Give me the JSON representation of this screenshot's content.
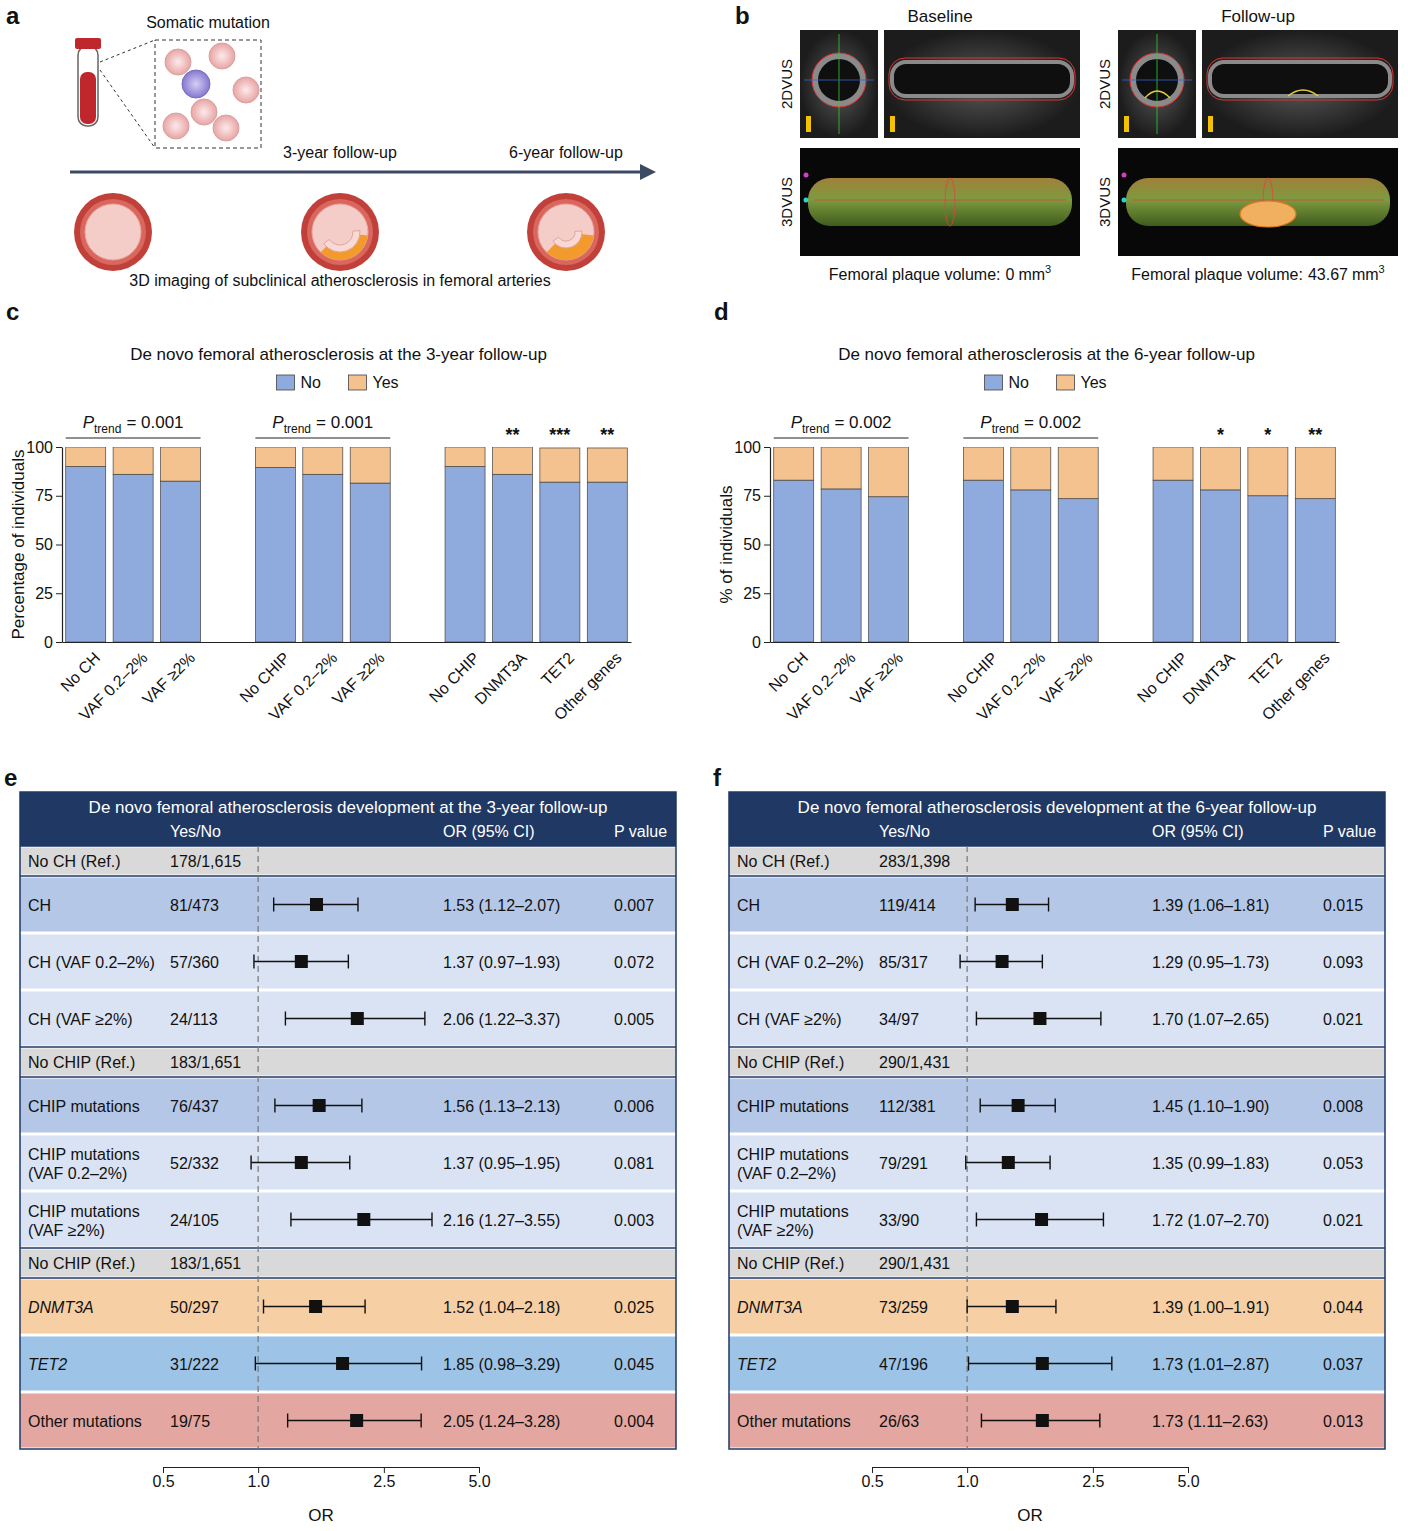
{
  "panel_a": {
    "label": "a",
    "cell_label": "Somatic mutation",
    "timepoints": [
      "3-year follow-up",
      "6-year follow-up"
    ],
    "caption": "3D imaging of subclinical atherosclerosis in femoral arteries"
  },
  "panel_b": {
    "label": "b",
    "rows": [
      "2DVUS",
      "3DVUS"
    ],
    "columns": [
      {
        "title": "Baseline",
        "volume_label": "Femoral plaque volume:",
        "volume": 0,
        "unit": "mm",
        "unit_exp": "3"
      },
      {
        "title": "Follow-up",
        "volume_label": "Femoral plaque volume:",
        "volume": 43.67,
        "unit": "mm",
        "unit_exp": "3"
      }
    ]
  },
  "chart_data": [
    {
      "panel": "c",
      "type": "bar",
      "stacked": true,
      "title": "De novo femoral atherosclerosis at the 3-year follow-up",
      "y_label": "Percentage of individuals",
      "categories": [
        "No CH",
        "VAF 0.2–2%",
        "VAF ≥2%",
        "No CHIP",
        "VAF 0.2–2%",
        "VAF ≥2%",
        "No CHIP",
        "DNMT3A",
        "TET2",
        "Other genes"
      ],
      "series": [
        {
          "name": "No",
          "color": "#8faadc",
          "values": [
            90,
            86,
            82.5,
            89.5,
            86,
            81.5,
            90,
            86,
            82,
            82
          ]
        },
        {
          "name": "Yes",
          "color": "#f4c28e",
          "values": [
            10,
            14,
            17.5,
            10.5,
            14,
            18.5,
            10,
            14,
            17.5,
            17.5
          ]
        }
      ],
      "ylim": [
        0,
        100
      ],
      "yticks": [
        0,
        25,
        50,
        75,
        100
      ],
      "legend": "top",
      "trend_tests": [
        {
          "symbol": "P",
          "subscript": "trend",
          "text": "= 0.001",
          "from": 0,
          "to": 2
        },
        {
          "symbol": "P",
          "subscript": "trend",
          "text": "= 0.001",
          "from": 3,
          "to": 5
        }
      ],
      "significance": [
        null,
        null,
        null,
        null,
        null,
        null,
        null,
        "**",
        "***",
        "**"
      ]
    },
    {
      "panel": "d",
      "type": "bar",
      "stacked": true,
      "title": "De novo femoral atherosclerosis at the 6-year follow-up",
      "y_label": "% of individuals",
      "categories": [
        "No CH",
        "VAF 0.2–2%",
        "VAF ≥2%",
        "No CHIP",
        "VAF 0.2–2%",
        "VAF ≥2%",
        "No CHIP",
        "DNMT3A",
        "TET2",
        "Other genes"
      ],
      "series": [
        {
          "name": "No",
          "color": "#8faadc",
          "values": [
            83,
            78.5,
            74.5,
            83,
            78,
            73.5,
            83,
            78,
            75,
            73.5
          ]
        },
        {
          "name": "Yes",
          "color": "#f4c28e",
          "values": [
            17,
            21.5,
            25.5,
            17,
            22,
            26.5,
            17,
            22,
            25,
            26.5
          ]
        }
      ],
      "ylim": [
        0,
        100
      ],
      "yticks": [
        0,
        25,
        50,
        75,
        100
      ],
      "legend": "top",
      "trend_tests": [
        {
          "symbol": "P",
          "subscript": "trend",
          "text": "= 0.002",
          "from": 0,
          "to": 2
        },
        {
          "symbol": "P",
          "subscript": "trend",
          "text": "= 0.002",
          "from": 3,
          "to": 5
        }
      ],
      "significance": [
        null,
        null,
        null,
        null,
        null,
        null,
        null,
        "*",
        "*",
        "**"
      ]
    },
    {
      "panel": "e",
      "type": "forest",
      "title": "De novo femoral atherosclerosis development at the 3-year follow-up",
      "columns": [
        "Yes/No",
        "OR (95% CI)",
        "P value"
      ],
      "x_label": "OR",
      "log": "x",
      "xlim": [
        0.5,
        5
      ],
      "xticks": [
        0.5,
        {
          "value": 1,
          "label": "1.0"
        },
        2.5,
        {
          "value": 5,
          "label": "5.0"
        }
      ],
      "reference_line": 1,
      "rows": [
        {
          "label": "No CH (Ref.)",
          "counts": "178/1,615",
          "color": "#d9d9d9"
        },
        {
          "label": "CH",
          "counts": "81/473",
          "or": 1.53,
          "ci": [
            1.12,
            2.07
          ],
          "or_label": "1.53 (1.12–2.07)",
          "p": 0.007,
          "color": "#b4c7e7"
        },
        {
          "label": "CH (VAF 0.2–2%)",
          "counts": "57/360",
          "or": 1.37,
          "ci": [
            0.97,
            1.93
          ],
          "or_label": "1.37 (0.97–1.93)",
          "p": 0.072,
          "color": "#dae3f3"
        },
        {
          "label": "CH (VAF ≥2%)",
          "counts": "24/113",
          "or": 2.06,
          "ci": [
            1.22,
            3.37
          ],
          "or_label": "2.06 (1.22–3.37)",
          "p": 0.005,
          "color": "#dae3f3"
        },
        {
          "label": "No CHIP (Ref.)",
          "counts": "183/1,651",
          "color": "#d9d9d9"
        },
        {
          "label": "CHIP mutations",
          "counts": "76/437",
          "or": 1.56,
          "ci": [
            1.13,
            2.13
          ],
          "or_label": "1.56 (1.13–2.13)",
          "p": 0.006,
          "color": "#b4c7e7"
        },
        {
          "label": "CHIP mutations (VAF 0.2–2%)",
          "counts": "52/332",
          "or": 1.37,
          "ci": [
            0.95,
            1.95
          ],
          "or_label": "1.37 (0.95–1.95)",
          "p": 0.081,
          "color": "#dae3f3"
        },
        {
          "label": "CHIP mutations (VAF ≥2%)",
          "counts": "24/105",
          "or": 2.16,
          "ci": [
            1.27,
            3.55
          ],
          "or_label": "2.16 (1.27–3.55)",
          "p": 0.003,
          "color": "#dae3f3"
        },
        {
          "label": "No CHIP (Ref.)",
          "counts": "183/1,651",
          "color": "#d9d9d9"
        },
        {
          "label": "DNMT3A",
          "counts": "50/297",
          "or": 1.52,
          "ci": [
            1.04,
            2.18
          ],
          "or_label": "1.52 (1.04–2.18)",
          "p": 0.025,
          "color": "#f6cfa4"
        },
        {
          "label": "TET2",
          "counts": "31/222",
          "or": 1.85,
          "ci": [
            0.98,
            3.29
          ],
          "or_label": "1.85 (0.98–3.29)",
          "p": 0.045,
          "color": "#9dc3e6"
        },
        {
          "label": "Other mutations",
          "counts": "19/75",
          "or": 2.05,
          "ci": [
            1.24,
            3.28
          ],
          "or_label": "2.05 (1.24–3.28)",
          "p": 0.004,
          "color": "#e3a6a0"
        }
      ]
    },
    {
      "panel": "f",
      "type": "forest",
      "title": "De novo femoral atherosclerosis development at the 6-year follow-up",
      "columns": [
        "Yes/No",
        "OR (95% CI)",
        "P value"
      ],
      "x_label": "OR",
      "log": "x",
      "xlim": [
        0.5,
        5
      ],
      "xticks": [
        0.5,
        {
          "value": 1,
          "label": "1.0"
        },
        2.5,
        {
          "value": 5,
          "label": "5.0"
        }
      ],
      "reference_line": 1,
      "rows": [
        {
          "label": "No CH (Ref.)",
          "counts": "283/1,398",
          "color": "#d9d9d9"
        },
        {
          "label": "CH",
          "counts": "119/414",
          "or": 1.39,
          "ci": [
            1.06,
            1.81
          ],
          "or_label": "1.39 (1.06–1.81)",
          "p": 0.015,
          "color": "#b4c7e7"
        },
        {
          "label": "CH (VAF 0.2–2%)",
          "counts": "85/317",
          "or": 1.29,
          "ci": [
            0.95,
            1.73
          ],
          "or_label": "1.29 (0.95–1.73)",
          "p": 0.093,
          "color": "#dae3f3"
        },
        {
          "label": "CH (VAF ≥2%)",
          "counts": "34/97",
          "or": 1.7,
          "ci": [
            1.07,
            2.65
          ],
          "or_label": "1.70 (1.07–2.65)",
          "p": 0.021,
          "color": "#dae3f3"
        },
        {
          "label": "No CHIP (Ref.)",
          "counts": "290/1,431",
          "color": "#d9d9d9"
        },
        {
          "label": "CHIP mutations",
          "counts": "112/381",
          "or": 1.45,
          "ci": [
            1.1,
            1.9
          ],
          "or_label": "1.45 (1.10–1.90)",
          "p": 0.008,
          "color": "#b4c7e7"
        },
        {
          "label": "CHIP mutations (VAF 0.2–2%)",
          "counts": "79/291",
          "or": 1.35,
          "ci": [
            0.99,
            1.83
          ],
          "or_label": "1.35 (0.99–1.83)",
          "p": 0.053,
          "color": "#dae3f3"
        },
        {
          "label": "CHIP mutations (VAF ≥2%)",
          "counts": "33/90",
          "or": 1.72,
          "ci": [
            1.07,
            2.7
          ],
          "or_label": "1.72 (1.07–2.70)",
          "p": 0.021,
          "color": "#dae3f3"
        },
        {
          "label": "No CHIP (Ref.)",
          "counts": "290/1,431",
          "color": "#d9d9d9"
        },
        {
          "label": "DNMT3A",
          "counts": "73/259",
          "or": 1.39,
          "ci": [
            1.0,
            1.91
          ],
          "or_label": "1.39 (1.00–1.91)",
          "p": 0.044,
          "color": "#f6cfa4"
        },
        {
          "label": "TET2",
          "counts": "47/196",
          "or": 1.73,
          "ci": [
            1.01,
            2.87
          ],
          "or_label": "1.73 (1.01–2.87)",
          "p": 0.037,
          "color": "#9dc3e6"
        },
        {
          "label": "Other mutations",
          "counts": "26/63",
          "or": 1.73,
          "ci": [
            1.11,
            2.63
          ],
          "or_label": "1.73 (1.11–2.63)",
          "p": 0.013,
          "color": "#e3a6a0"
        }
      ]
    }
  ]
}
